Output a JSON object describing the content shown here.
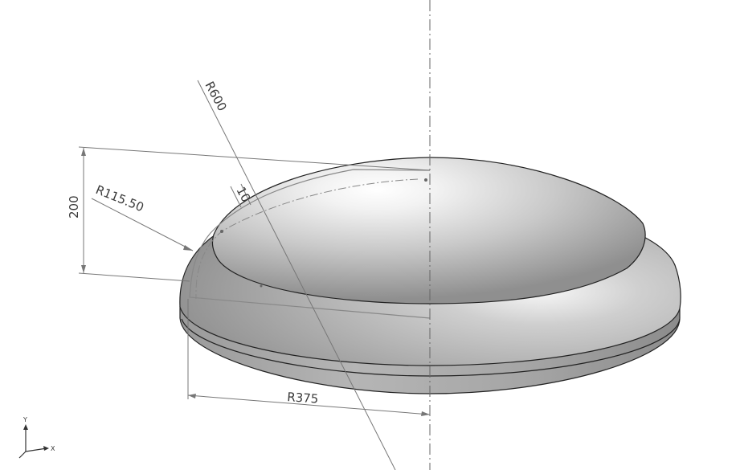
{
  "view": {
    "background": "#ffffff",
    "part_color": "#c8c8c8"
  },
  "dimensions": {
    "r600": "R600",
    "thickness": "10",
    "height": "200",
    "r115": "R115.50",
    "r375": "R375"
  },
  "triad": {
    "y_label": "Y",
    "x_label": "X"
  }
}
